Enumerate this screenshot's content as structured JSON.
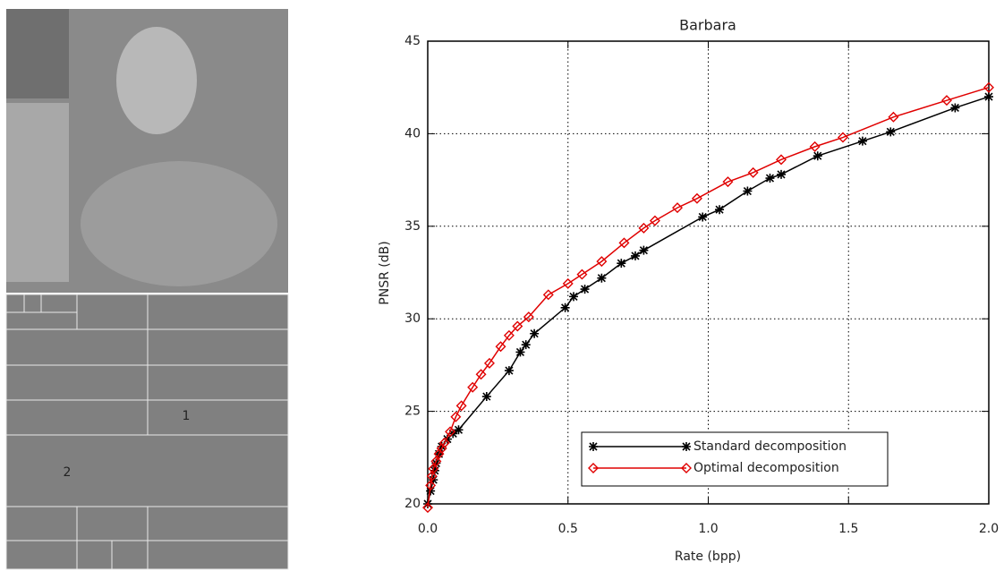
{
  "image_panel": {
    "labels": [
      "1",
      "2"
    ]
  },
  "chart_data": {
    "type": "line",
    "title": "Barbara",
    "x_label": "Rate (bpp)",
    "y_label": "PNSR (dB)",
    "xlim": [
      0,
      2
    ],
    "ylim": [
      20,
      45
    ],
    "xticks": [
      {
        "value": 0,
        "label": "0.0"
      },
      0.5,
      {
        "value": 1,
        "label": "1.0"
      },
      1.5,
      {
        "value": 2,
        "label": "2.0"
      }
    ],
    "yticks": [
      20,
      25,
      30,
      35,
      40,
      45
    ],
    "grid": true,
    "legend": "lower right",
    "series": [
      {
        "name": "Standard decomposition",
        "color": "#000000",
        "marker": "asterisk",
        "x": [
          0.0,
          0.01,
          0.02,
          0.025,
          0.03,
          0.04,
          0.05,
          0.07,
          0.09,
          0.11,
          0.21,
          0.29,
          0.33,
          0.35,
          0.38,
          0.49,
          0.52,
          0.56,
          0.62,
          0.69,
          0.74,
          0.77,
          0.98,
          1.04,
          1.14,
          1.22,
          1.26,
          1.39,
          1.55,
          1.65,
          1.88,
          2.0
        ],
        "values": [
          20.0,
          20.7,
          21.3,
          21.8,
          22.2,
          22.7,
          23.1,
          23.5,
          23.8,
          24.0,
          25.8,
          27.2,
          28.2,
          28.6,
          29.2,
          30.6,
          31.2,
          31.6,
          32.2,
          33.0,
          33.4,
          33.7,
          35.5,
          35.9,
          36.9,
          37.6,
          37.8,
          38.8,
          39.6,
          40.1,
          41.4,
          42.0
        ]
      },
      {
        "name": "Optimal decomposition",
        "color": "#e00000",
        "marker": "diamond",
        "x": [
          0.0,
          0.01,
          0.015,
          0.02,
          0.03,
          0.04,
          0.05,
          0.06,
          0.08,
          0.1,
          0.12,
          0.16,
          0.19,
          0.22,
          0.26,
          0.29,
          0.32,
          0.36,
          0.43,
          0.5,
          0.55,
          0.62,
          0.7,
          0.77,
          0.81,
          0.89,
          0.96,
          1.07,
          1.16,
          1.26,
          1.38,
          1.48,
          1.66,
          1.85,
          2.0
        ],
        "values": [
          19.8,
          21.0,
          21.5,
          21.9,
          22.3,
          22.7,
          23.0,
          23.3,
          23.9,
          24.7,
          25.3,
          26.3,
          27.0,
          27.6,
          28.5,
          29.1,
          29.6,
          30.1,
          31.3,
          31.9,
          32.4,
          33.1,
          34.1,
          34.9,
          35.3,
          36.0,
          36.5,
          37.4,
          37.9,
          38.6,
          39.3,
          39.8,
          40.9,
          41.8,
          42.5
        ]
      }
    ]
  }
}
